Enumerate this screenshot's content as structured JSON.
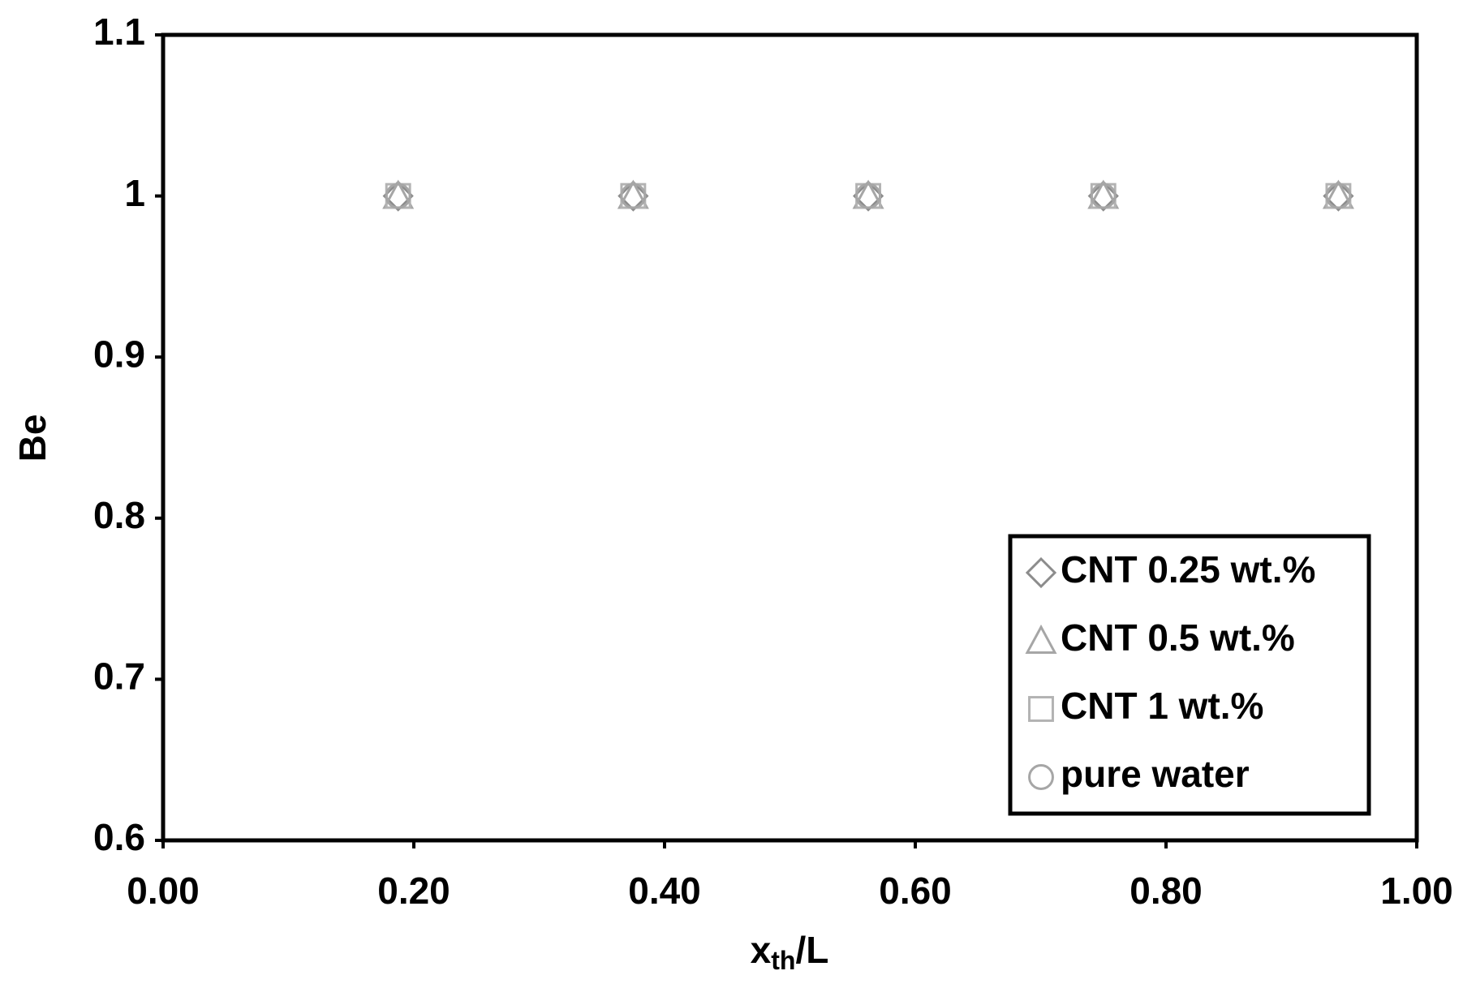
{
  "chart_data": {
    "type": "scatter",
    "x_label": {
      "main": "x",
      "sub": "th",
      "rest": "/L"
    },
    "y_label": "Be",
    "xlim": [
      0,
      1
    ],
    "xticks": [
      {
        "value": 0,
        "label": "0.00"
      },
      {
        "value": 0.2,
        "label": "0.20"
      },
      {
        "value": 0.4,
        "label": "0.40"
      },
      {
        "value": 0.6,
        "label": "0.60"
      },
      {
        "value": 0.8,
        "label": "0.80"
      },
      {
        "value": 1,
        "label": "1.00"
      }
    ],
    "ylim": [
      0.6,
      1.1
    ],
    "yticks": [
      0.6,
      0.7,
      0.8,
      0.9,
      1,
      1.1
    ],
    "legend": "lower right",
    "series": [
      {
        "name": "CNT 0.25 wt.%",
        "marker": "diamond",
        "color": "#8c8c8c",
        "x": [
          0.1875,
          0.375,
          0.5625,
          0.75,
          0.9375
        ],
        "values": [
          1,
          1,
          1,
          1,
          1
        ]
      },
      {
        "name": "CNT 0.5 wt.%",
        "marker": "triangle",
        "color": "#a6a6a6",
        "x": [
          0.1875,
          0.375,
          0.5625,
          0.75,
          0.9375
        ],
        "values": [
          1,
          1,
          1,
          1,
          1
        ]
      },
      {
        "name": "CNT 1 wt.%",
        "marker": "square",
        "color": "#b3b3b3",
        "x": [
          0.1875,
          0.375,
          0.5625,
          0.75,
          0.9375
        ],
        "values": [
          1,
          1,
          1,
          1,
          1
        ]
      },
      {
        "name": "pure water",
        "marker": "circle",
        "color": "#a6a6a6",
        "x": [
          0.1875,
          0.375,
          0.5625,
          0.75,
          0.9375
        ],
        "values": [
          1,
          1,
          1,
          1,
          1
        ]
      }
    ]
  }
}
